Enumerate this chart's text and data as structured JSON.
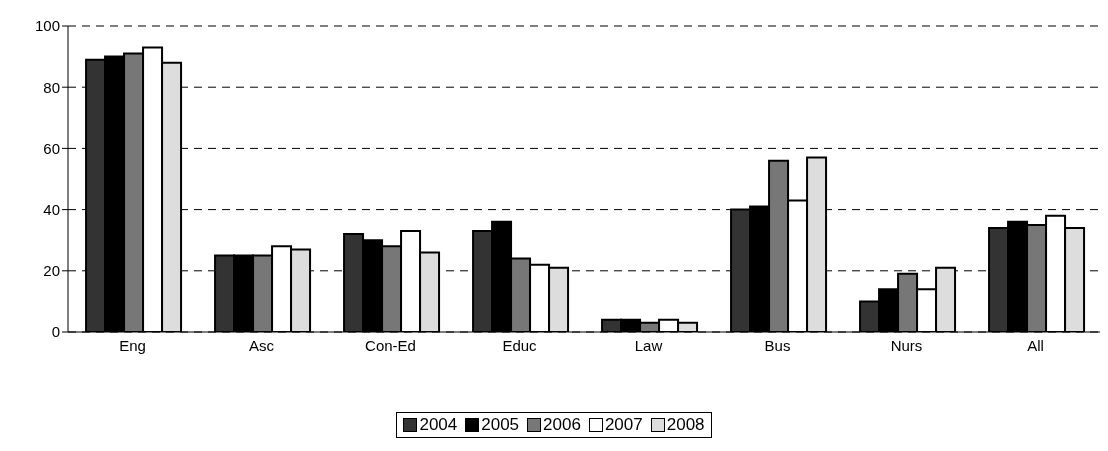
{
  "chart_data": {
    "type": "bar",
    "categories": [
      "Eng",
      "Asc",
      "Con-Ed",
      "Educ",
      "Law",
      "Bus",
      "Nurs",
      "All"
    ],
    "series": [
      {
        "name": "2004",
        "color": "#333333",
        "values": [
          89,
          25,
          32,
          33,
          4,
          40,
          10,
          34
        ]
      },
      {
        "name": "2005",
        "color": "#000000",
        "values": [
          90,
          25,
          30,
          36,
          4,
          41,
          14,
          36
        ]
      },
      {
        "name": "2006",
        "color": "#777777",
        "values": [
          91,
          25,
          28,
          24,
          3,
          56,
          19,
          35
        ]
      },
      {
        "name": "2007",
        "color": "#ffffff",
        "values": [
          93,
          28,
          33,
          22,
          4,
          43,
          14,
          38
        ]
      },
      {
        "name": "2008",
        "color": "#dddddd",
        "values": [
          88,
          27,
          26,
          21,
          3,
          57,
          21,
          34
        ]
      }
    ],
    "ylim": [
      0,
      100
    ],
    "yticks": [
      0,
      20,
      40,
      60,
      80,
      100
    ],
    "grid": "y",
    "legend": "bottom"
  }
}
